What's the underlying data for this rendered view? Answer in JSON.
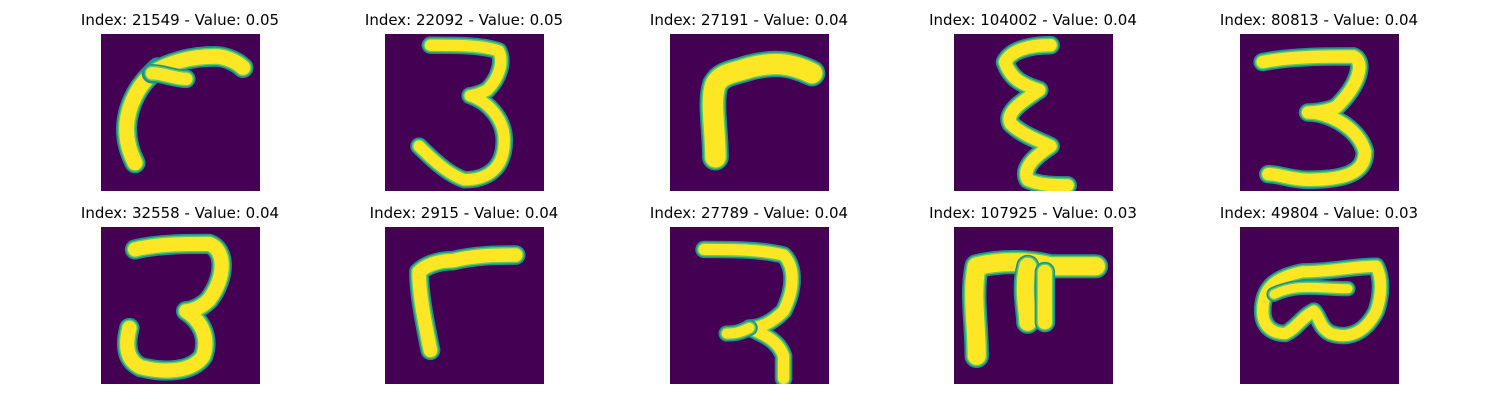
{
  "colors": {
    "background": "#440154",
    "glyph_edge": "#21918c",
    "glyph_mid": "#5ec962",
    "glyph_core": "#fde725"
  },
  "panels": [
    {
      "index": "21549",
      "value": "0.05",
      "title": "Index: 21549 - Value: 0.05"
    },
    {
      "index": "22092",
      "value": "0.05",
      "title": "Index: 22092 - Value: 0.05"
    },
    {
      "index": "27191",
      "value": "0.04",
      "title": "Index: 27191 - Value: 0.04"
    },
    {
      "index": "104002",
      "value": "0.04",
      "title": "Index: 104002 - Value: 0.04"
    },
    {
      "index": "80813",
      "value": "0.04",
      "title": "Index: 80813 - Value: 0.04"
    },
    {
      "index": "32558",
      "value": "0.04",
      "title": "Index: 32558 - Value: 0.04"
    },
    {
      "index": "2915",
      "value": "0.04",
      "title": "Index: 2915 - Value: 0.04"
    },
    {
      "index": "27789",
      "value": "0.04",
      "title": "Index: 27789 - Value: 0.04"
    },
    {
      "index": "107925",
      "value": "0.03",
      "title": "Index: 107925 - Value: 0.03"
    },
    {
      "index": "49804",
      "value": "0.03",
      "title": "Index: 49804 - Value: 0.03"
    }
  ]
}
